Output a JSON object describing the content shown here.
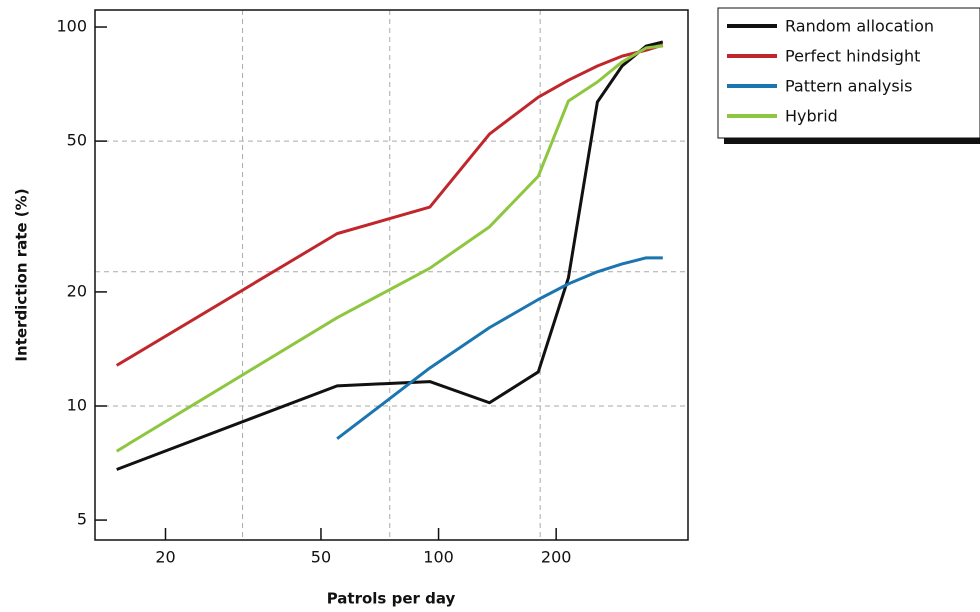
{
  "chart_data": {
    "type": "line",
    "xlabel": "Patrols per day",
    "ylabel": "Interdiction rate (%)",
    "log_x": true,
    "log_y": true,
    "x": [
      15,
      55,
      95,
      135,
      180,
      215,
      255,
      295,
      340,
      375
    ],
    "series": [
      {
        "name": "Random allocation",
        "color": "#111111",
        "values": [
          6.8,
          11.3,
          11.6,
          10.2,
          12.3,
          21.8,
          63.4,
          78.9,
          89.1,
          91.3
        ]
      },
      {
        "name": "Perfect hindsight",
        "color": "#c0272d",
        "values": [
          12.8,
          28.5,
          33.5,
          52.2,
          65.3,
          72.4,
          78.9,
          83.8,
          86.9,
          89.6
        ]
      },
      {
        "name": "Pattern analysis",
        "color": "#1a75b0",
        "values": [
          null,
          8.2,
          12.6,
          16.1,
          19.1,
          21.0,
          22.6,
          23.7,
          24.6,
          24.6
        ]
      },
      {
        "name": "Hybrid",
        "color": "#8dc63f",
        "values": [
          7.6,
          17.1,
          23.1,
          29.7,
          40.4,
          63.8,
          71.6,
          80.9,
          88.1,
          89.1
        ]
      }
    ],
    "xlim": [
      13.2,
      435
    ],
    "ylim": [
      4.43,
      110.9
    ],
    "xticks": [
      20,
      50,
      100,
      200
    ],
    "yticks": [
      5,
      10,
      20,
      50,
      100
    ],
    "xgrid": [
      31.5,
      75,
      182
    ],
    "ygrid": [
      10,
      22.6,
      50
    ],
    "legend": "top-right"
  }
}
